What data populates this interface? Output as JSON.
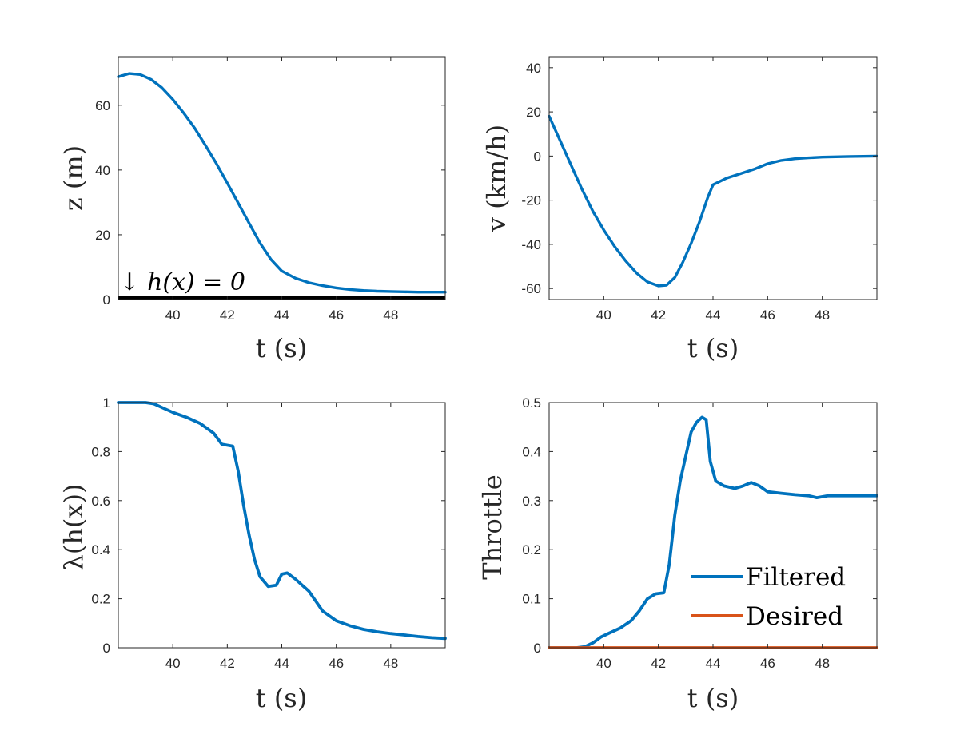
{
  "colors": {
    "filtered": "#0072BD",
    "desired": "#D95319",
    "axis": "#262626",
    "boundary": "#000000"
  },
  "chart_data": [
    {
      "id": "z",
      "type": "line",
      "xlabel": "t (s)",
      "ylabel": "z (m)",
      "xlim": [
        38,
        50
      ],
      "ylim": [
        0,
        75
      ],
      "xticks": [
        40,
        42,
        44,
        46,
        48
      ],
      "yticks": [
        0,
        20,
        40,
        60
      ],
      "grid": false,
      "annotation": {
        "text": "↓ h(x) = 0",
        "x": 38.1,
        "y": 3
      },
      "boundary_line": {
        "y": 0.6
      },
      "series": [
        {
          "color": "#0072BD",
          "x": [
            38,
            38.4,
            38.8,
            39.2,
            39.6,
            40,
            40.4,
            40.8,
            41.2,
            41.6,
            42,
            42.4,
            42.8,
            43.2,
            43.6,
            44,
            44.5,
            45,
            45.5,
            46,
            46.5,
            47,
            47.5,
            48,
            48.5,
            49,
            49.5,
            50
          ],
          "y": [
            68.8,
            69.8,
            69.5,
            68,
            65.4,
            61.8,
            57.6,
            53,
            47.6,
            42,
            36,
            29.8,
            23.6,
            17.5,
            12.4,
            8.8,
            6.6,
            5.2,
            4.3,
            3.6,
            3.1,
            2.8,
            2.6,
            2.5,
            2.4,
            2.3,
            2.3,
            2.3
          ]
        }
      ]
    },
    {
      "id": "v",
      "type": "line",
      "xlabel": "t (s)",
      "ylabel": "v (km/h)",
      "xlim": [
        38,
        50
      ],
      "ylim": [
        -65,
        45
      ],
      "xticks": [
        40,
        42,
        44,
        46,
        48
      ],
      "yticks": [
        -60,
        -40,
        -20,
        0,
        20,
        40
      ],
      "grid": false,
      "series": [
        {
          "color": "#0072BD",
          "x": [
            38,
            38.4,
            38.8,
            39.2,
            39.6,
            40,
            40.4,
            40.8,
            41.2,
            41.6,
            42,
            42.3,
            42.6,
            42.9,
            43.2,
            43.5,
            43.8,
            44,
            44.5,
            45,
            45.5,
            46,
            46.5,
            47,
            47.5,
            48,
            49,
            50
          ],
          "y": [
            18,
            7,
            -4,
            -15,
            -25,
            -33.5,
            -41,
            -47.5,
            -53,
            -57,
            -58.8,
            -58.5,
            -55,
            -48,
            -39.5,
            -30,
            -19,
            -13,
            -10,
            -8,
            -6,
            -3.5,
            -2,
            -1.2,
            -0.8,
            -0.5,
            -0.2,
            0
          ]
        }
      ]
    },
    {
      "id": "lambda",
      "type": "line",
      "xlabel": "t (s)",
      "ylabel": "λ(h(x))",
      "xlim": [
        38,
        50
      ],
      "ylim": [
        0,
        1
      ],
      "xticks": [
        40,
        42,
        44,
        46,
        48
      ],
      "yticks": [
        0,
        0.2,
        0.4,
        0.6,
        0.8,
        1
      ],
      "grid": false,
      "series": [
        {
          "color": "#0072BD",
          "x": [
            38,
            38.5,
            39,
            39.3,
            39.7,
            40,
            40.5,
            41,
            41.5,
            41.8,
            42.2,
            42.4,
            42.6,
            42.8,
            43,
            43.2,
            43.5,
            43.8,
            44,
            44.2,
            44.5,
            45,
            45.5,
            46,
            46.5,
            47,
            47.5,
            48,
            48.5,
            49,
            49.5,
            50
          ],
          "y": [
            1,
            1,
            1,
            0.995,
            0.975,
            0.96,
            0.94,
            0.915,
            0.875,
            0.83,
            0.822,
            0.72,
            0.58,
            0.46,
            0.36,
            0.29,
            0.25,
            0.255,
            0.3,
            0.305,
            0.28,
            0.23,
            0.15,
            0.11,
            0.09,
            0.075,
            0.065,
            0.058,
            0.052,
            0.046,
            0.041,
            0.038
          ]
        }
      ]
    },
    {
      "id": "throttle",
      "type": "line",
      "xlabel": "t (s)",
      "ylabel": "Throttle",
      "xlim": [
        38,
        50
      ],
      "ylim": [
        0,
        0.5
      ],
      "xticks": [
        40,
        42,
        44,
        46,
        48
      ],
      "yticks": [
        0,
        0.1,
        0.2,
        0.3,
        0.4,
        0.5
      ],
      "grid": false,
      "legend": "bottom-right",
      "series": [
        {
          "name": "Filtered",
          "color": "#0072BD",
          "x": [
            38,
            39,
            39.3,
            39.6,
            39.9,
            40.2,
            40.6,
            41,
            41.3,
            41.6,
            41.9,
            42.2,
            42.4,
            42.6,
            42.8,
            43,
            43.2,
            43.4,
            43.6,
            43.75,
            43.9,
            44.1,
            44.4,
            44.8,
            45.1,
            45.4,
            45.7,
            46,
            46.5,
            47,
            47.5,
            47.8,
            48.2,
            49,
            50
          ],
          "y": [
            0,
            0,
            0.002,
            0.01,
            0.022,
            0.03,
            0.04,
            0.055,
            0.075,
            0.1,
            0.11,
            0.112,
            0.17,
            0.27,
            0.34,
            0.39,
            0.44,
            0.46,
            0.47,
            0.465,
            0.38,
            0.34,
            0.33,
            0.325,
            0.33,
            0.337,
            0.33,
            0.318,
            0.315,
            0.312,
            0.31,
            0.306,
            0.31,
            0.31,
            0.31
          ]
        },
        {
          "name": "Desired",
          "color": "#D95319",
          "x": [
            38,
            50
          ],
          "y": [
            0,
            0
          ]
        }
      ]
    }
  ]
}
